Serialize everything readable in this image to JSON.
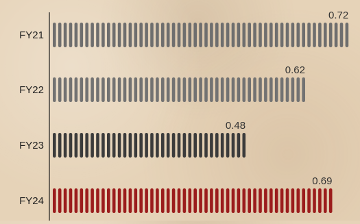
{
  "chart_data": {
    "type": "bar",
    "orientation": "horizontal",
    "categories": [
      "FY21",
      "FY22",
      "FY23",
      "FY24"
    ],
    "values": [
      0.72,
      0.62,
      0.48,
      0.69
    ],
    "value_labels": [
      "0.72",
      "0.62",
      "0.48",
      "0.69"
    ],
    "colors": [
      "#6e6e6e",
      "#727272",
      "#3b3b3b",
      "#9b1c1c"
    ],
    "title": "",
    "xlabel": "",
    "ylabel": "",
    "xlim": [
      0,
      0.72
    ],
    "grid": false,
    "legend": "none"
  }
}
